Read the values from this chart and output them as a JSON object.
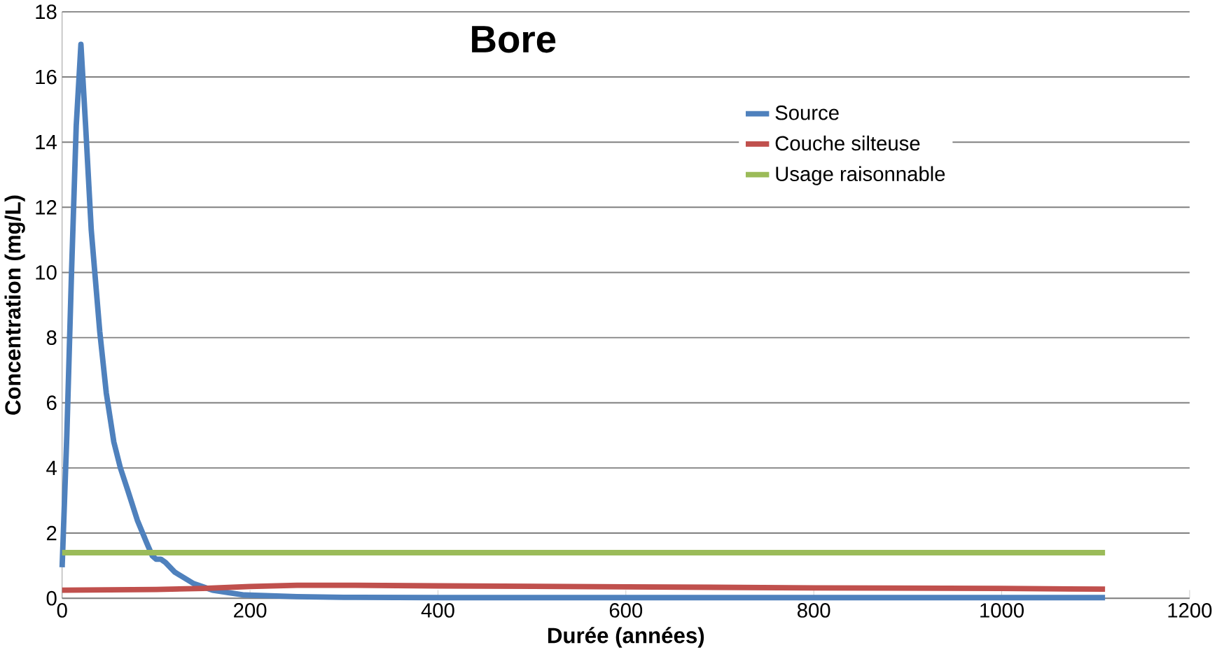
{
  "chart_data": {
    "type": "line",
    "title": "Bore",
    "xlabel": "Durée (années)",
    "ylabel": "Concentration (mg/L)",
    "xlim": [
      0,
      1200
    ],
    "xticks": [
      0,
      200,
      400,
      600,
      800,
      1000,
      1200
    ],
    "ylim": [
      0,
      18
    ],
    "yticks": [
      0,
      2,
      4,
      6,
      8,
      10,
      12,
      14,
      16,
      18
    ],
    "grid": "y",
    "legend": "right",
    "marker": "none",
    "line_style": "solid",
    "series": [
      {
        "name": "Source",
        "color": "#4f81bd",
        "x": [
          0,
          5,
          10,
          15,
          20,
          25,
          31,
          40,
          47,
          55,
          62,
          70,
          80,
          90,
          96,
          100,
          105,
          110,
          120,
          140,
          160,
          194,
          250,
          300,
          400,
          600,
          800,
          1000,
          1110
        ],
        "values": [
          0.95,
          5,
          10,
          14.5,
          17,
          14.5,
          11.3,
          8.2,
          6.3,
          4.8,
          4,
          3.3,
          2.4,
          1.7,
          1.3,
          1.2,
          1.2,
          1.1,
          0.8,
          0.45,
          0.25,
          0.1,
          0.05,
          0.03,
          0.02,
          0.02,
          0.02,
          0.02,
          0.02
        ]
      },
      {
        "name": "Couche silteuse",
        "color": "#c0504d",
        "x": [
          0,
          100,
          150,
          200,
          250,
          300,
          400,
          600,
          800,
          1000,
          1110
        ],
        "values": [
          0.25,
          0.27,
          0.3,
          0.36,
          0.4,
          0.4,
          0.38,
          0.35,
          0.32,
          0.3,
          0.28
        ]
      },
      {
        "name": "Usage raisonnable",
        "color": "#9bbb59",
        "x": [
          0,
          1110
        ],
        "values": [
          1.4,
          1.4
        ]
      }
    ]
  }
}
